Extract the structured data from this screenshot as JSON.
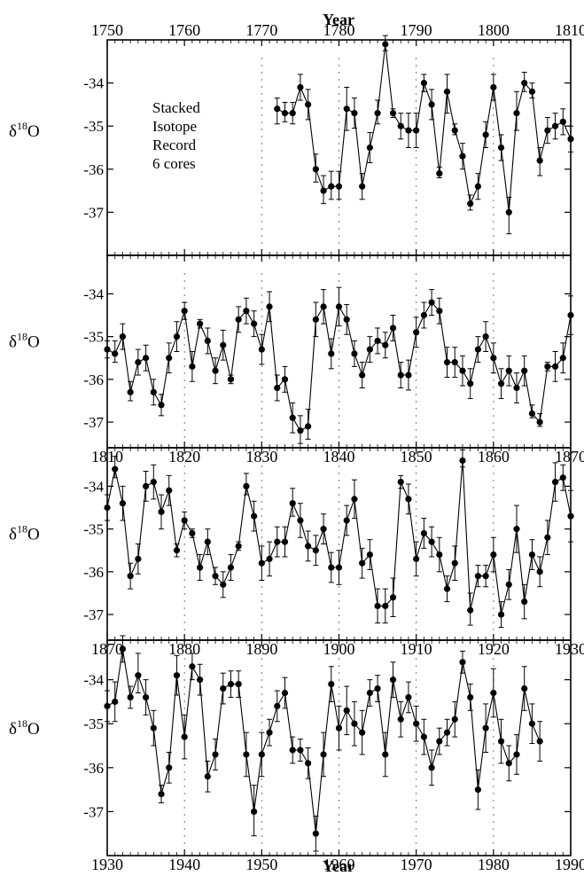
{
  "figure": {
    "top_axis_title": "Year",
    "bottom_axis_title": "Year",
    "ylabel_base": "δ",
    "ylabel_sup": "18",
    "ylabel_tail": "O"
  },
  "chart_data": [
    {
      "type": "line",
      "panel": 1,
      "xlim": [
        1750,
        1810
      ],
      "ylim": [
        -38,
        -33
      ],
      "x_ticks": [
        1750,
        1760,
        1770,
        1780,
        1790,
        1800,
        1810
      ],
      "x_tick_labels_position": "top",
      "y_ticks": [
        -34,
        -35,
        -36,
        -37
      ],
      "annotation": [
        "Stacked",
        "Isotope",
        "Record",
        "6 cores"
      ],
      "dashed_decade_lines": [
        1770,
        1780,
        1790,
        1800
      ],
      "x": [
        1772,
        1773,
        1774,
        1775,
        1776,
        1777,
        1778,
        1779,
        1780,
        1781,
        1782,
        1783,
        1784,
        1785,
        1786,
        1787,
        1788,
        1789,
        1790,
        1791,
        1792,
        1793,
        1794,
        1795,
        1796,
        1797,
        1798,
        1799,
        1800,
        1801,
        1802,
        1803,
        1804,
        1805,
        1806,
        1807,
        1808,
        1809,
        1810
      ],
      "values": [
        -34.6,
        -34.7,
        -34.7,
        -34.1,
        -34.5,
        -36.0,
        -36.5,
        -36.4,
        -36.4,
        -34.6,
        -34.7,
        -36.4,
        -35.5,
        -34.7,
        -33.1,
        -34.7,
        -35.0,
        -35.1,
        -35.1,
        -34.0,
        -34.5,
        -36.1,
        -34.2,
        -35.1,
        -35.7,
        -36.8,
        -36.4,
        -35.2,
        -34.1,
        -35.5,
        -37.0,
        -34.7,
        -34.0,
        -34.2,
        -35.8,
        -35.1,
        -35.0,
        -34.9,
        -35.3
      ],
      "error_up": [
        0.25,
        0.25,
        0.25,
        0.3,
        0.35,
        0.35,
        0.35,
        0.35,
        0.35,
        0.5,
        0.35,
        0.3,
        0.35,
        0.3,
        0.2,
        0.1,
        0.3,
        0.4,
        0.4,
        0.2,
        0.35,
        0.15,
        0.4,
        0.15,
        0.3,
        0.2,
        0.3,
        0.3,
        0.3,
        0.3,
        0.35,
        0.5,
        0.25,
        0.2,
        0.3,
        0.3,
        0.3,
        0.3,
        0.3
      ],
      "error_down": [
        0.35,
        0.2,
        0.25,
        0.3,
        0.35,
        0.3,
        0.3,
        0.3,
        0.3,
        0.5,
        0.35,
        0.3,
        0.35,
        0.25,
        0.15,
        0.1,
        0.3,
        0.4,
        0.4,
        0.2,
        0.35,
        0.1,
        0.5,
        0.1,
        0.3,
        0.15,
        0.3,
        0.3,
        0.3,
        0.3,
        0.5,
        0.4,
        0.2,
        0.15,
        0.35,
        0.3,
        0.3,
        0.3,
        0.3
      ]
    },
    {
      "type": "line",
      "panel": 2,
      "xlim": [
        1810,
        1870
      ],
      "ylim": [
        -37.6,
        -33.1
      ],
      "x_ticks": [
        1810,
        1820,
        1830,
        1840,
        1850,
        1860,
        1870
      ],
      "y_ticks": [
        -34,
        -35,
        -36,
        -37
      ],
      "dashed_decade_lines": [
        1820,
        1830,
        1840,
        1850,
        1860
      ],
      "x": [
        1810,
        1811,
        1812,
        1813,
        1814,
        1815,
        1816,
        1817,
        1818,
        1819,
        1820,
        1821,
        1822,
        1823,
        1824,
        1825,
        1826,
        1827,
        1828,
        1829,
        1830,
        1831,
        1832,
        1833,
        1834,
        1835,
        1836,
        1837,
        1838,
        1839,
        1840,
        1841,
        1842,
        1843,
        1844,
        1845,
        1846,
        1847,
        1848,
        1849,
        1850,
        1851,
        1852,
        1853,
        1854,
        1855,
        1856,
        1857,
        1858,
        1859,
        1860,
        1861,
        1862,
        1863,
        1864,
        1865,
        1866,
        1867,
        1868,
        1869,
        1870
      ],
      "values": [
        -35.3,
        -35.4,
        -35.0,
        -36.3,
        -35.6,
        -35.5,
        -36.3,
        -36.6,
        -35.5,
        -35.0,
        -34.4,
        -35.7,
        -34.7,
        -35.1,
        -35.8,
        -35.2,
        -36.0,
        -34.6,
        -34.4,
        -34.7,
        -35.3,
        -34.3,
        -36.2,
        -36.0,
        -36.9,
        -37.2,
        -37.1,
        -34.6,
        -34.3,
        -35.4,
        -34.3,
        -34.6,
        -35.4,
        -35.9,
        -35.3,
        -35.1,
        -35.2,
        -34.8,
        -35.9,
        -35.9,
        -34.9,
        -34.5,
        -34.2,
        -34.4,
        -35.6,
        -35.6,
        -35.8,
        -36.1,
        -35.3,
        -35.0,
        -35.5,
        -36.1,
        -35.8,
        -36.2,
        -35.8,
        -36.8,
        -37.0,
        -35.7,
        -35.7,
        -35.5,
        -34.5
      ],
      "error_up": [
        0.2,
        0.3,
        0.3,
        0.25,
        0.3,
        0.3,
        0.3,
        0.25,
        0.35,
        0.35,
        0.2,
        0.35,
        0.1,
        0.3,
        0.3,
        0.35,
        0.1,
        0.3,
        0.3,
        0.3,
        0.35,
        0.35,
        0.3,
        0.3,
        0.35,
        0.35,
        0.4,
        0.4,
        0.4,
        0.35,
        0.45,
        0.35,
        0.3,
        0.3,
        0.3,
        0.3,
        0.3,
        0.3,
        0.3,
        0.35,
        0.35,
        0.3,
        0.3,
        0.3,
        0.35,
        0.35,
        0.35,
        0.35,
        0.3,
        0.35,
        0.35,
        0.35,
        0.35,
        0.35,
        0.35,
        0.2,
        0.2,
        0.1,
        0.35,
        0.35,
        0.45
      ],
      "error_down": [
        0.2,
        0.2,
        0.3,
        0.2,
        0.3,
        0.3,
        0.3,
        0.25,
        0.35,
        0.35,
        0.2,
        0.35,
        0.1,
        0.3,
        0.3,
        0.35,
        0.1,
        0.3,
        0.3,
        0.3,
        0.35,
        0.35,
        0.3,
        0.3,
        0.35,
        0.3,
        0.3,
        0.4,
        0.4,
        0.35,
        0.45,
        0.35,
        0.3,
        0.3,
        0.3,
        0.3,
        0.3,
        0.3,
        0.3,
        0.35,
        0.35,
        0.3,
        0.3,
        0.3,
        0.35,
        0.35,
        0.35,
        0.35,
        0.3,
        0.35,
        0.35,
        0.35,
        0.35,
        0.35,
        0.35,
        0.1,
        0.1,
        0.1,
        0.35,
        0.35,
        0.45
      ]
    },
    {
      "type": "line",
      "panel": 3,
      "xlim": [
        1870,
        1930
      ],
      "ylim": [
        -37.6,
        -33.1
      ],
      "x_ticks": [
        1870,
        1880,
        1890,
        1900,
        1910,
        1920,
        1930
      ],
      "y_ticks": [
        -34,
        -35,
        -36,
        -37
      ],
      "dashed_decade_lines": [
        1880,
        1890,
        1900,
        1910,
        1920
      ],
      "x": [
        1870,
        1871,
        1872,
        1873,
        1874,
        1875,
        1876,
        1877,
        1878,
        1879,
        1880,
        1881,
        1882,
        1883,
        1884,
        1885,
        1886,
        1887,
        1888,
        1889,
        1890,
        1891,
        1892,
        1893,
        1894,
        1895,
        1896,
        1897,
        1898,
        1899,
        1900,
        1901,
        1902,
        1903,
        1904,
        1905,
        1906,
        1907,
        1908,
        1909,
        1910,
        1911,
        1912,
        1913,
        1914,
        1915,
        1916,
        1917,
        1918,
        1919,
        1920,
        1921,
        1922,
        1923,
        1924,
        1925,
        1926,
        1927,
        1928,
        1929,
        1930
      ],
      "values": [
        -34.5,
        -33.6,
        -34.4,
        -36.1,
        -35.7,
        -34.0,
        -33.9,
        -34.6,
        -34.1,
        -35.5,
        -34.8,
        -35.1,
        -35.9,
        -35.3,
        -36.1,
        -36.3,
        -35.9,
        -35.4,
        -34.0,
        -34.7,
        -35.8,
        -35.7,
        -35.3,
        -35.3,
        -34.4,
        -34.8,
        -35.4,
        -35.5,
        -35.0,
        -35.9,
        -35.9,
        -34.8,
        -34.3,
        -35.8,
        -35.6,
        -36.8,
        -36.8,
        -36.6,
        -33.9,
        -34.3,
        -35.7,
        -35.1,
        -35.3,
        -35.6,
        -36.4,
        -35.8,
        -33.4,
        -36.9,
        -36.1,
        -36.1,
        -35.6,
        -37.0,
        -36.3,
        -35.0,
        -36.7,
        -35.6,
        -36.0,
        -35.2,
        -33.9,
        -33.8,
        -34.7
      ],
      "error_up": [
        0.3,
        0.3,
        0.4,
        0.3,
        0.35,
        0.35,
        0.4,
        0.4,
        0.35,
        0.15,
        0.2,
        0.1,
        0.3,
        0.3,
        0.2,
        0.3,
        0.3,
        0.1,
        0.3,
        0.35,
        0.4,
        0.4,
        0.35,
        0.35,
        0.35,
        0.4,
        0.35,
        0.35,
        0.35,
        0.35,
        0.4,
        0.35,
        0.45,
        0.35,
        0.35,
        0.4,
        0.4,
        0.45,
        0.15,
        0.35,
        0.4,
        0.35,
        0.35,
        0.4,
        0.3,
        0.4,
        0.25,
        0.4,
        0.25,
        0.25,
        0.4,
        0.3,
        0.35,
        0.55,
        0.4,
        0.35,
        0.35,
        0.4,
        0.45,
        0.3,
        0.6
      ],
      "error_down": [
        0.3,
        0.2,
        0.4,
        0.3,
        0.35,
        0.35,
        0.4,
        0.4,
        0.35,
        0.15,
        0.2,
        0.1,
        0.3,
        0.3,
        0.2,
        0.3,
        0.3,
        0.1,
        0.2,
        0.35,
        0.4,
        0.4,
        0.35,
        0.35,
        0.3,
        0.4,
        0.35,
        0.35,
        0.35,
        0.35,
        0.4,
        0.35,
        0.45,
        0.35,
        0.35,
        0.4,
        0.4,
        0.45,
        0.15,
        0.35,
        0.4,
        0.35,
        0.35,
        0.4,
        0.3,
        0.4,
        0.15,
        0.35,
        0.25,
        0.25,
        0.4,
        0.3,
        0.35,
        0.55,
        0.4,
        0.35,
        0.35,
        0.4,
        0.45,
        0.3,
        0.6
      ]
    },
    {
      "type": "line",
      "panel": 4,
      "xlim": [
        1930,
        1990
      ],
      "ylim": [
        -38,
        -33.1
      ],
      "x_ticks": [
        1930,
        1940,
        1950,
        1960,
        1970,
        1980,
        1990
      ],
      "y_ticks": [
        -34,
        -35,
        -36,
        -37
      ],
      "dashed_decade_lines": [
        1940,
        1950,
        1960,
        1970,
        1980
      ],
      "x": [
        1930,
        1931,
        1932,
        1933,
        1934,
        1935,
        1936,
        1937,
        1938,
        1939,
        1940,
        1941,
        1942,
        1943,
        1944,
        1945,
        1946,
        1947,
        1948,
        1949,
        1950,
        1951,
        1952,
        1953,
        1954,
        1955,
        1956,
        1957,
        1958,
        1959,
        1960,
        1961,
        1962,
        1963,
        1964,
        1965,
        1966,
        1967,
        1968,
        1969,
        1970,
        1971,
        1972,
        1973,
        1974,
        1975,
        1976,
        1977,
        1978,
        1979,
        1980,
        1981,
        1982,
        1983,
        1984,
        1985,
        1986
      ],
      "values": [
        -34.6,
        -34.5,
        -33.3,
        -34.4,
        -33.9,
        -34.4,
        -35.1,
        -36.6,
        -36.0,
        -33.9,
        -35.3,
        -33.7,
        -34.0,
        -36.2,
        -35.7,
        -34.2,
        -34.1,
        -34.1,
        -35.7,
        -37.0,
        -35.7,
        -35.2,
        -34.6,
        -34.3,
        -35.6,
        -35.6,
        -35.9,
        -37.5,
        -35.7,
        -34.1,
        -35.1,
        -34.7,
        -35.0,
        -35.2,
        -34.3,
        -34.2,
        -35.7,
        -34.0,
        -34.9,
        -34.4,
        -35.0,
        -35.3,
        -36.0,
        -35.4,
        -35.2,
        -34.9,
        -33.6,
        -34.4,
        -36.5,
        -35.1,
        -34.3,
        -35.4,
        -35.9,
        -35.7,
        -34.2,
        -35.0,
        -35.4
      ],
      "error_up": [
        0.35,
        0.45,
        0.3,
        0.25,
        0.5,
        0.4,
        0.4,
        0.2,
        0.35,
        0.45,
        0.5,
        0.3,
        0.35,
        0.35,
        0.35,
        0.35,
        0.3,
        0.3,
        0.5,
        0.6,
        0.5,
        0.3,
        0.35,
        0.35,
        0.3,
        0.25,
        0.35,
        0.4,
        0.5,
        0.4,
        0.5,
        0.55,
        0.5,
        0.5,
        0.3,
        0.3,
        0.5,
        0.4,
        0.4,
        0.35,
        0.4,
        0.4,
        0.4,
        0.3,
        0.3,
        0.4,
        0.25,
        0.3,
        0.45,
        0.55,
        0.55,
        0.5,
        0.4,
        0.45,
        0.5,
        0.45,
        0.45
      ],
      "error_down": [
        0.35,
        0.45,
        0.3,
        0.25,
        0.4,
        0.4,
        0.4,
        0.2,
        0.35,
        0.45,
        0.5,
        0.3,
        0.35,
        0.35,
        0.35,
        0.35,
        0.3,
        0.3,
        0.5,
        0.55,
        0.5,
        0.3,
        0.35,
        0.35,
        0.3,
        0.25,
        0.35,
        0.4,
        0.5,
        0.4,
        0.5,
        0.55,
        0.5,
        0.5,
        0.3,
        0.3,
        0.5,
        0.4,
        0.4,
        0.35,
        0.4,
        0.4,
        0.4,
        0.3,
        0.3,
        0.4,
        0.25,
        0.3,
        0.45,
        0.55,
        0.55,
        0.5,
        0.4,
        0.45,
        0.5,
        0.45,
        0.45
      ]
    }
  ]
}
